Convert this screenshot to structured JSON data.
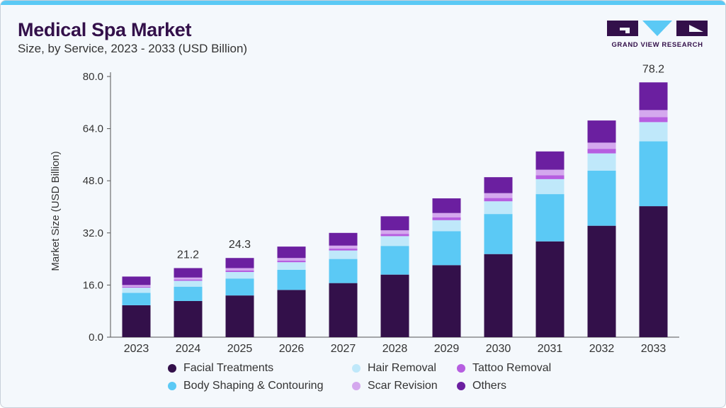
{
  "header": {
    "title": "Medical Spa Market",
    "subtitle": "Size, by Service, 2023 - 2033 (USD Billion)"
  },
  "brand": {
    "name": "GRAND VIEW RESEARCH",
    "logo_icon": "gvr-logo-icon",
    "colors": {
      "dark": "#33104a",
      "accent": "#5bc9f5"
    }
  },
  "chart_data": {
    "type": "bar",
    "stacked": true,
    "ylabel": "Market Size (USD Billion)",
    "xlabel": "",
    "ylim": [
      0,
      80
    ],
    "yticks": [
      "0.0",
      "16.0",
      "32.0",
      "48.0",
      "64.0",
      "80.0"
    ],
    "categories": [
      "2023",
      "2024",
      "2025",
      "2026",
      "2027",
      "2028",
      "2029",
      "2030",
      "2031",
      "2032",
      "2033"
    ],
    "series": [
      {
        "name": "Facial Treatments",
        "color": "#33104a",
        "values": [
          9.8,
          11.1,
          12.8,
          14.5,
          16.6,
          19.2,
          22.1,
          25.5,
          29.4,
          34.2,
          40.2
        ]
      },
      {
        "name": "Body Shaping & Contouring",
        "color": "#5bc9f5",
        "values": [
          3.8,
          4.4,
          5.2,
          6.2,
          7.4,
          8.8,
          10.4,
          12.3,
          14.5,
          16.9,
          19.9
        ]
      },
      {
        "name": "Hair Removal",
        "color": "#bfe8fa",
        "values": [
          1.6,
          1.8,
          2.0,
          2.3,
          2.6,
          3.0,
          3.4,
          3.9,
          4.6,
          5.3,
          5.9
        ]
      },
      {
        "name": "Tattoo Removal",
        "color": "#b65ee0",
        "values": [
          0.3,
          0.4,
          0.5,
          0.5,
          0.6,
          0.7,
          0.9,
          1.0,
          1.2,
          1.4,
          1.5
        ]
      },
      {
        "name": "Scar Revision",
        "color": "#d4a8ee",
        "values": [
          0.5,
          0.6,
          0.7,
          0.8,
          0.9,
          1.1,
          1.3,
          1.5,
          1.7,
          1.9,
          2.2
        ]
      },
      {
        "name": "Others",
        "color": "#6b1fa0",
        "values": [
          2.6,
          2.9,
          3.1,
          3.5,
          3.9,
          4.3,
          4.5,
          4.9,
          5.6,
          6.8,
          8.5
        ]
      }
    ],
    "annotations": [
      {
        "category": "2024",
        "label": "21.2"
      },
      {
        "category": "2025",
        "label": "24.3"
      },
      {
        "category": "2033",
        "label": "78.2"
      }
    ],
    "grid": false,
    "legend_position": "bottom"
  }
}
